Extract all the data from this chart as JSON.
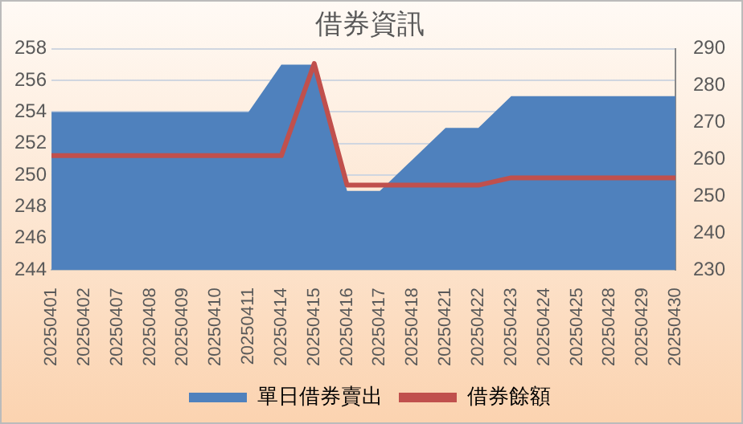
{
  "chart_data": {
    "type": "area",
    "title": "借券資訊",
    "categories": [
      "20250401",
      "20250402",
      "20250407",
      "20250408",
      "20250409",
      "20250410",
      "20250411",
      "20250414",
      "20250415",
      "20250416",
      "20250417",
      "20250418",
      "20250421",
      "20250422",
      "20250423",
      "20250424",
      "20250425",
      "20250428",
      "20250429",
      "20250430"
    ],
    "series": [
      {
        "name": "單日借券賣出",
        "color": "#4f81bd",
        "values": [
          254,
          254,
          254,
          254,
          254,
          254,
          254,
          257,
          257,
          249,
          249,
          251,
          253,
          253,
          255,
          255,
          255,
          255,
          255,
          255
        ]
      },
      {
        "name": "借券餘額",
        "type": "line",
        "axis": "y2",
        "color": "#c0504d",
        "values": [
          261,
          261,
          261,
          261,
          261,
          261,
          261,
          261,
          286,
          253,
          253,
          253,
          253,
          253,
          255,
          255,
          255,
          255,
          255,
          255
        ]
      }
    ],
    "ylim": [
      244,
      258
    ],
    "yticks": [
      244,
      246,
      248,
      250,
      252,
      254,
      256,
      258
    ],
    "y2lim": [
      230,
      290
    ],
    "y2ticks": [
      230,
      240,
      250,
      260,
      270,
      280,
      290
    ],
    "grid": "y",
    "legend": "bottom",
    "marker": "none"
  }
}
